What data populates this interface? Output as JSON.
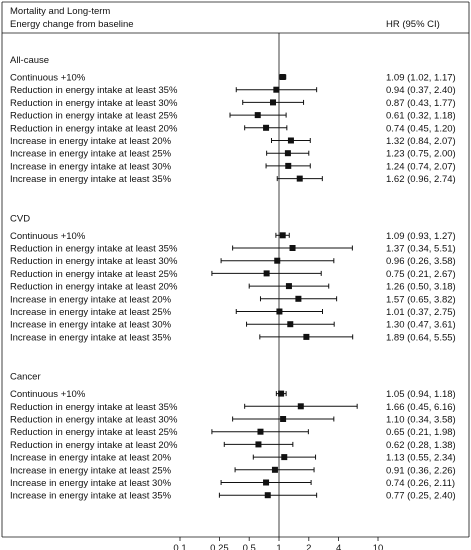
{
  "chart_data": {
    "type": "forest",
    "header": {
      "left_lines": [
        "Mortality and Long-term",
        "Energy change from baseline"
      ],
      "right": "HR (95% CI)"
    },
    "x_scale": "log",
    "x_ticks": [
      0.1,
      0.25,
      0.5,
      1,
      2,
      4,
      10
    ],
    "x_tick_labels": [
      "0.1",
      "0.25",
      "0.5",
      "1",
      "2",
      "4",
      "10"
    ],
    "xlim": [
      0.1,
      10
    ],
    "reference_line": 1,
    "groups": [
      {
        "name": "All-cause",
        "rows": [
          {
            "label": "Continuous +10%",
            "hr": 1.09,
            "lo": 1.02,
            "hi": 1.17,
            "ci_text": "1.09 (1.02, 1.17)"
          },
          {
            "label": "Reduction in energy intake at least 35%",
            "hr": 0.94,
            "lo": 0.37,
            "hi": 2.4,
            "ci_text": "0.94 (0.37, 2.40)"
          },
          {
            "label": "Reduction in energy intake at least 30%",
            "hr": 0.87,
            "lo": 0.43,
            "hi": 1.77,
            "ci_text": "0.87 (0.43, 1.77)"
          },
          {
            "label": "Reduction in energy intake at least 25%",
            "hr": 0.61,
            "lo": 0.32,
            "hi": 1.18,
            "ci_text": "0.61 (0.32, 1.18)"
          },
          {
            "label": "Reduction in energy intake at least 20%",
            "hr": 0.74,
            "lo": 0.45,
            "hi": 1.2,
            "ci_text": "0.74 (0.45, 1.20)"
          },
          {
            "label": "Increase in energy intake at least 20%",
            "hr": 1.32,
            "lo": 0.84,
            "hi": 2.07,
            "ci_text": "1.32 (0.84, 2.07)"
          },
          {
            "label": "Increase in energy intake at least 25%",
            "hr": 1.23,
            "lo": 0.75,
            "hi": 2.0,
            "ci_text": "1.23 (0.75, 2.00)"
          },
          {
            "label": "Increase in energy intake at least 30%",
            "hr": 1.24,
            "lo": 0.74,
            "hi": 2.07,
            "ci_text": "1.24 (0.74, 2.07)"
          },
          {
            "label": "Increase in energy intake at least 35%",
            "hr": 1.62,
            "lo": 0.96,
            "hi": 2.74,
            "ci_text": "1.62 (0.96, 2.74)"
          }
        ]
      },
      {
        "name": "CVD",
        "rows": [
          {
            "label": "Continuous +10%",
            "hr": 1.09,
            "lo": 0.93,
            "hi": 1.27,
            "ci_text": "1.09 (0.93, 1.27)"
          },
          {
            "label": "Reduction in energy intake at least 35%",
            "hr": 1.37,
            "lo": 0.34,
            "hi": 5.51,
            "ci_text": "1.37 (0.34, 5.51)"
          },
          {
            "label": "Reduction in energy intake at least 30%",
            "hr": 0.96,
            "lo": 0.26,
            "hi": 3.58,
            "ci_text": "0.96 (0.26, 3.58)"
          },
          {
            "label": "Reduction in energy intake at least 25%",
            "hr": 0.75,
            "lo": 0.21,
            "hi": 2.67,
            "ci_text": "0.75 (0.21, 2.67)"
          },
          {
            "label": "Reduction in energy intake at least 20%",
            "hr": 1.26,
            "lo": 0.5,
            "hi": 3.18,
            "ci_text": "1.26 (0.50, 3.18)"
          },
          {
            "label": "Increase in energy intake at least 20%",
            "hr": 1.57,
            "lo": 0.65,
            "hi": 3.82,
            "ci_text": "1.57 (0.65, 3.82)"
          },
          {
            "label": "Increase in energy intake at least 25%",
            "hr": 1.01,
            "lo": 0.37,
            "hi": 2.75,
            "ci_text": "1.01 (0.37, 2.75)"
          },
          {
            "label": "Increase in energy intake at least 30%",
            "hr": 1.3,
            "lo": 0.47,
            "hi": 3.61,
            "ci_text": "1.30 (0.47, 3.61)"
          },
          {
            "label": "Increase in energy intake at least 35%",
            "hr": 1.89,
            "lo": 0.64,
            "hi": 5.55,
            "ci_text": "1.89 (0.64, 5.55)"
          }
        ]
      },
      {
        "name": "Cancer",
        "rows": [
          {
            "label": "Continuous +10%",
            "hr": 1.05,
            "lo": 0.94,
            "hi": 1.18,
            "ci_text": "1.05 (0.94, 1.18)"
          },
          {
            "label": "Reduction in energy intake at least 35%",
            "hr": 1.66,
            "lo": 0.45,
            "hi": 6.16,
            "ci_text": "1.66 (0.45, 6.16)"
          },
          {
            "label": "Reduction in energy intake at least 30%",
            "hr": 1.1,
            "lo": 0.34,
            "hi": 3.58,
            "ci_text": "1.10 (0.34, 3.58)"
          },
          {
            "label": "Reduction in energy intake at least 25%",
            "hr": 0.65,
            "lo": 0.21,
            "hi": 1.98,
            "ci_text": "0.65 (0.21, 1.98)"
          },
          {
            "label": "Reduction in energy intake at least 20%",
            "hr": 0.62,
            "lo": 0.28,
            "hi": 1.38,
            "ci_text": "0.62 (0.28, 1.38)"
          },
          {
            "label": "Increase in energy intake at least 20%",
            "hr": 1.13,
            "lo": 0.55,
            "hi": 2.34,
            "ci_text": "1.13 (0.55, 2.34)"
          },
          {
            "label": "Increase in energy intake at least 25%",
            "hr": 0.91,
            "lo": 0.36,
            "hi": 2.26,
            "ci_text": "0.91 (0.36, 2.26)"
          },
          {
            "label": "Increase in energy intake at least 30%",
            "hr": 0.74,
            "lo": 0.26,
            "hi": 2.11,
            "ci_text": "0.74 (0.26, 2.11)"
          },
          {
            "label": "Increase in energy intake at least 35%",
            "hr": 0.77,
            "lo": 0.25,
            "hi": 2.4,
            "ci_text": "0.77 (0.25, 2.40)"
          }
        ]
      }
    ],
    "colors": {
      "ink": "#111111",
      "background": "#ffffff"
    }
  }
}
